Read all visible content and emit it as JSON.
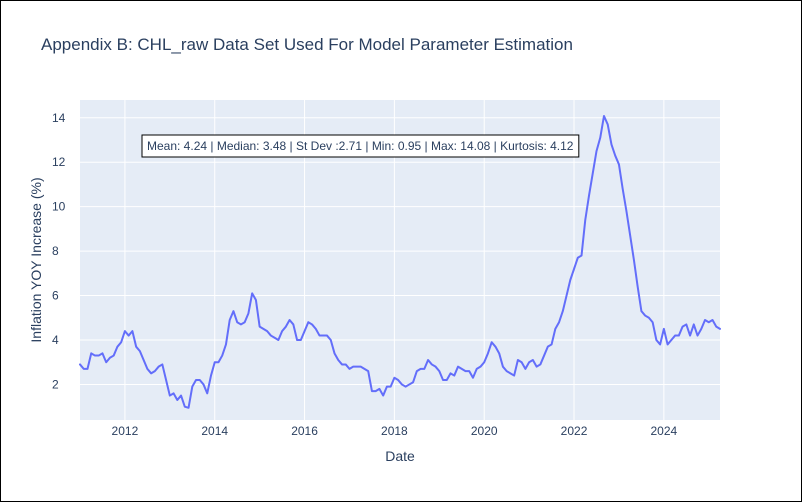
{
  "chart_data": {
    "type": "line",
    "title": "Appendix B: CHL_raw Data Set Used For Model Parameter Estimation",
    "xlabel": "Date",
    "ylabel": "Inflation YOY Increase (%)",
    "annotation": "Mean: 4.24 | Median: 3.48 | St Dev :2.71 | Min: 0.95 | Max: 14.08 | Kurtosis: 4.12",
    "xlim": [
      "2011-01",
      "2025-04"
    ],
    "ylim": [
      0.4,
      14.8
    ],
    "xticks": [
      {
        "date": "2012-01",
        "label": "2012"
      },
      {
        "date": "2014-01",
        "label": "2014"
      },
      {
        "date": "2016-01",
        "label": "2016"
      },
      {
        "date": "2018-01",
        "label": "2018"
      },
      {
        "date": "2020-01",
        "label": "2020"
      },
      {
        "date": "2022-01",
        "label": "2022"
      },
      {
        "date": "2024-01",
        "label": "2024"
      }
    ],
    "yticks": [
      2,
      4,
      6,
      8,
      10,
      12,
      14
    ],
    "grid": true,
    "line_color": "#636efa",
    "plot_bg": "#e5ecf6",
    "series": [
      {
        "start": "2011-01",
        "frequency": "monthly",
        "values": [
          2.9,
          2.7,
          2.7,
          3.4,
          3.3,
          3.3,
          3.4,
          3.0,
          3.2,
          3.3,
          3.7,
          3.9,
          4.4,
          4.2,
          4.4,
          3.7,
          3.5,
          3.1,
          2.7,
          2.5,
          2.6,
          2.8,
          2.9,
          2.2,
          1.5,
          1.6,
          1.3,
          1.5,
          1.0,
          0.95,
          1.9,
          2.2,
          2.2,
          2.0,
          1.6,
          2.4,
          3.0,
          3.0,
          3.3,
          3.8,
          4.9,
          5.3,
          4.8,
          4.7,
          4.8,
          5.2,
          6.1,
          5.8,
          4.6,
          4.5,
          4.4,
          4.2,
          4.1,
          4.0,
          4.4,
          4.6,
          4.9,
          4.7,
          4.0,
          4.0,
          4.4,
          4.8,
          4.7,
          4.5,
          4.2,
          4.2,
          4.2,
          4.0,
          3.4,
          3.1,
          2.9,
          2.9,
          2.7,
          2.8,
          2.8,
          2.8,
          2.7,
          2.6,
          1.7,
          1.7,
          1.8,
          1.5,
          1.9,
          1.9,
          2.3,
          2.2,
          2.0,
          1.9,
          2.0,
          2.1,
          2.6,
          2.7,
          2.7,
          3.1,
          2.9,
          2.8,
          2.6,
          2.2,
          2.2,
          2.5,
          2.4,
          2.8,
          2.7,
          2.6,
          2.6,
          2.3,
          2.7,
          2.8,
          3.0,
          3.4,
          3.9,
          3.7,
          3.4,
          2.8,
          2.6,
          2.5,
          2.4,
          3.1,
          3.0,
          2.7,
          3.0,
          3.1,
          2.8,
          2.9,
          3.3,
          3.7,
          3.8,
          4.5,
          4.8,
          5.3,
          6.0,
          6.7,
          7.2,
          7.7,
          7.8,
          9.4,
          10.5,
          11.5,
          12.5,
          13.1,
          14.08,
          13.7,
          12.8,
          12.3,
          11.9,
          10.8,
          9.8,
          8.7,
          7.6,
          6.4,
          5.3,
          5.1,
          5.0,
          4.8,
          4.0,
          3.8,
          4.5,
          3.8,
          4.0,
          4.2,
          4.2,
          4.6,
          4.7,
          4.2,
          4.7,
          4.2,
          4.5,
          4.9,
          4.8,
          4.9,
          4.6,
          4.5
        ]
      }
    ]
  }
}
